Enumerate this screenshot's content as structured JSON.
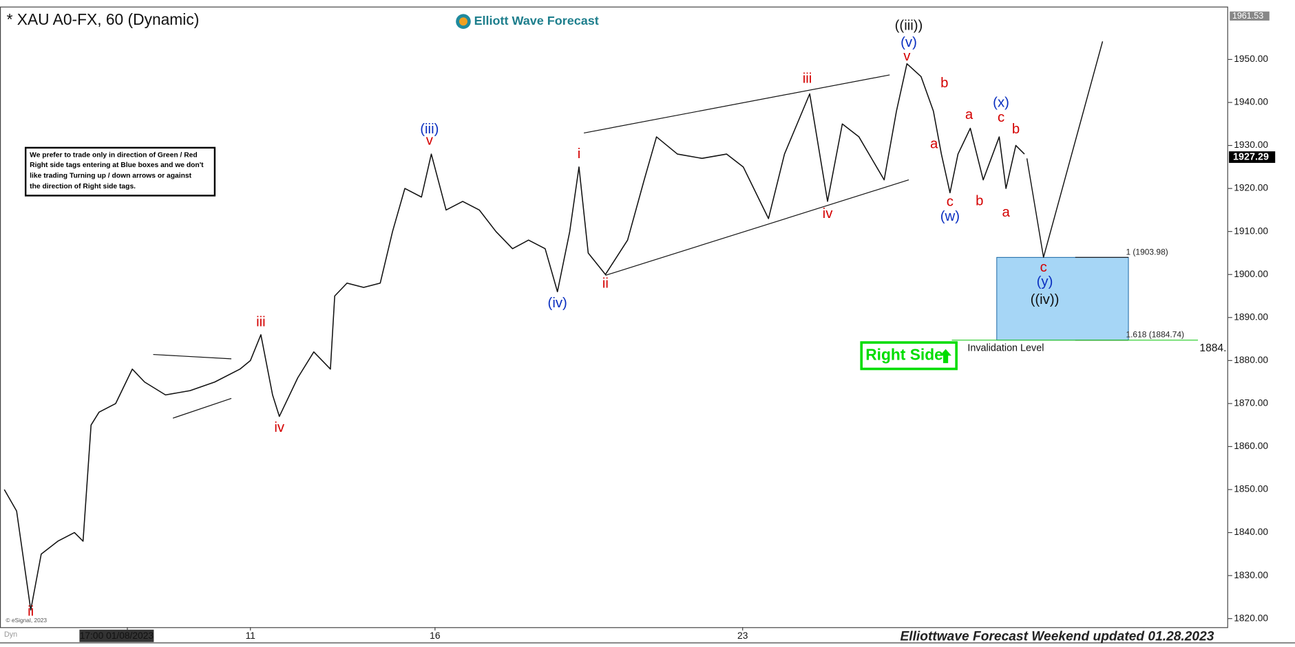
{
  "chart_data": {
    "type": "line",
    "title": "* XAU A0-FX, 60 (Dynamic)",
    "brand": "Elliott Wave Forecast",
    "note": [
      "We prefer to trade only in direction of Green / Red",
      "Right side tags entering at Blue boxes and we don't",
      "like trading Turning up / down arrows or against",
      "the direction of Right side tags."
    ],
    "footer": "Elliottwave Forecast Weekend updated 01.28.2023",
    "copyright": "© eSignal, 2023",
    "corner_label": "Dyn",
    "xlim": [
      -2.07,
      17.89
    ],
    "ylim": [
      1818,
      1961.9
    ],
    "xticks": [
      {
        "value": 0,
        "label": "17:00 01/08/2023"
      },
      {
        "value": 2,
        "label": "11"
      },
      {
        "value": 5,
        "label": "16"
      },
      {
        "value": 10,
        "label": "23"
      }
    ],
    "yticks": [
      {
        "value": 1820,
        "label": "1820.00"
      },
      {
        "value": 1830,
        "label": "1830.00"
      },
      {
        "value": 1840,
        "label": "1840.00"
      },
      {
        "value": 1850,
        "label": "1850.00"
      },
      {
        "value": 1860,
        "label": "1860.00"
      },
      {
        "value": 1870,
        "label": "1870.00"
      },
      {
        "value": 1880,
        "label": "1880.00"
      },
      {
        "value": 1890,
        "label": "1890.00"
      },
      {
        "value": 1900,
        "label": "1900.00"
      },
      {
        "value": 1910,
        "label": "1910.00"
      },
      {
        "value": 1920,
        "label": "1920.00"
      },
      {
        "value": 1930,
        "label": "1930.00"
      },
      {
        "value": 1940,
        "label": "1940.00"
      },
      {
        "value": 1950,
        "label": "1950.00"
      }
    ],
    "top_price": {
      "value": 1961.53,
      "label": "1961.53"
    },
    "last_price": {
      "value": 1927.29,
      "label": "1927.29"
    },
    "x": [
      -2.0,
      -1.8,
      -1.57,
      -1.4,
      -1.13,
      -0.86,
      -0.72,
      -0.59,
      -0.46,
      -0.19,
      0.08,
      0.28,
      0.62,
      1.02,
      1.42,
      1.83,
      2.0,
      2.17,
      2.36,
      2.47,
      2.77,
      3.03,
      3.3,
      3.37,
      3.57,
      3.84,
      4.11,
      4.31,
      4.51,
      4.78,
      4.94,
      5.18,
      5.45,
      5.72,
      5.99,
      6.26,
      6.52,
      6.79,
      6.99,
      7.19,
      7.34,
      7.49,
      7.77,
      8.13,
      8.4,
      8.6,
      8.94,
      9.34,
      9.74,
      10.01,
      10.42,
      10.68,
      11.09,
      11.38,
      11.62,
      11.89,
      12.3,
      12.5,
      12.67,
      12.9,
      13.1,
      13.23,
      13.37,
      13.5,
      13.7,
      13.91,
      14.17,
      14.28,
      14.44,
      14.58
    ],
    "series": [
      {
        "color": "#111111",
        "values": [
          1850,
          1845,
          1822,
          1835,
          1838,
          1840,
          1838,
          1865,
          1868,
          1870,
          1878,
          1875,
          1872,
          1873,
          1875,
          1878,
          1880,
          1886,
          1872,
          1867,
          1876,
          1882,
          1878,
          1895,
          1898,
          1897,
          1898,
          1910,
          1920,
          1918,
          1928,
          1915,
          1917,
          1915,
          1910,
          1906,
          1908,
          1906,
          1896,
          1910,
          1925,
          1905,
          1900,
          1908,
          1922,
          1932,
          1928,
          1927,
          1928,
          1925,
          1913,
          1928,
          1942,
          1917,
          1935,
          1932,
          1922,
          1938,
          1949,
          1946,
          1938,
          1928,
          1919,
          1928,
          1934,
          1922,
          1932,
          1920,
          1930,
          1928
        ]
      }
    ],
    "projection": {
      "color": "#111111",
      "x": [
        14.62,
        14.89,
        15.85
      ],
      "values": [
        1927,
        1904,
        1954.2
      ]
    },
    "trendlines": [
      {
        "x": [
          0.42,
          1.69
        ],
        "y": [
          1881.4,
          1880.4
        ]
      },
      {
        "x": [
          0.74,
          1.69
        ],
        "y": [
          1866.6,
          1871.2
        ]
      },
      {
        "x": [
          7.42,
          12.39
        ],
        "y": [
          1932.9,
          1946.4
        ]
      },
      {
        "x": [
          7.77,
          12.7
        ],
        "y": [
          1899.8,
          1922.0
        ]
      }
    ],
    "annotations": [
      {
        "text": "ii",
        "x": -1.57,
        "y": 1821.5,
        "color": "#d40000"
      },
      {
        "text": "iii",
        "x": 2.17,
        "y": 1888.8,
        "color": "#d40000"
      },
      {
        "text": "iv",
        "x": 2.47,
        "y": 1864.3,
        "color": "#d40000"
      },
      {
        "text": "(iii)",
        "x": 4.91,
        "y": 1933.7,
        "color": "#0a2fc0"
      },
      {
        "text": "v",
        "x": 4.91,
        "y": 1931.0,
        "color": "#d40000"
      },
      {
        "text": "(iv)",
        "x": 6.99,
        "y": 1893.2,
        "color": "#0a2fc0"
      },
      {
        "text": "i",
        "x": 7.34,
        "y": 1927.9,
        "color": "#d40000"
      },
      {
        "text": "ii",
        "x": 7.77,
        "y": 1897.8,
        "color": "#d40000"
      },
      {
        "text": "iii",
        "x": 11.05,
        "y": 1945.4,
        "color": "#d40000"
      },
      {
        "text": "iv",
        "x": 11.38,
        "y": 1914.0,
        "color": "#d40000"
      },
      {
        "text": "((iii))",
        "x": 12.7,
        "y": 1957.7,
        "color": "#111111"
      },
      {
        "text": "(v)",
        "x": 12.7,
        "y": 1953.8,
        "color": "#0a2fc0"
      },
      {
        "text": "v",
        "x": 12.67,
        "y": 1950.6,
        "color": "#d40000"
      },
      {
        "text": "b",
        "x": 13.28,
        "y": 1944.4,
        "color": "#d40000"
      },
      {
        "text": "a",
        "x": 13.11,
        "y": 1930.2,
        "color": "#d40000"
      },
      {
        "text": "c",
        "x": 13.37,
        "y": 1916.8,
        "color": "#d40000"
      },
      {
        "text": "(w)",
        "x": 13.37,
        "y": 1913.4,
        "color": "#0a2fc0"
      },
      {
        "text": "a",
        "x": 13.68,
        "y": 1937.0,
        "color": "#d40000"
      },
      {
        "text": "b",
        "x": 13.85,
        "y": 1917.0,
        "color": "#d40000"
      },
      {
        "text": "(x)",
        "x": 14.2,
        "y": 1939.8,
        "color": "#0a2fc0"
      },
      {
        "text": "c",
        "x": 14.2,
        "y": 1936.4,
        "color": "#d40000"
      },
      {
        "text": "b",
        "x": 14.44,
        "y": 1933.7,
        "color": "#d40000"
      },
      {
        "text": "a",
        "x": 14.28,
        "y": 1914.3,
        "color": "#d40000"
      },
      {
        "text": "c",
        "x": 14.89,
        "y": 1901.5,
        "color": "#d40000"
      },
      {
        "text": "(y)",
        "x": 14.91,
        "y": 1898.2,
        "color": "#0a2fc0"
      },
      {
        "text": "((iv))",
        "x": 14.91,
        "y": 1894.0,
        "color": "#111111"
      }
    ],
    "target_box": {
      "x": [
        14.13,
        16.27
      ],
      "color": "#a6d6f6",
      "levels": [
        {
          "value": 1903.98,
          "label": "1 (1903.98)"
        },
        {
          "value": 1884.74,
          "label": "1.618 (1884.74)"
        }
      ]
    },
    "invalidation": {
      "label": "Invalidation Level",
      "value": 1884.74,
      "x": [
        13.4,
        17.4
      ],
      "color": "#22cc22",
      "price_label": "1884."
    },
    "right_side": {
      "text": "Right Side",
      "color": "#00dd00"
    }
  }
}
